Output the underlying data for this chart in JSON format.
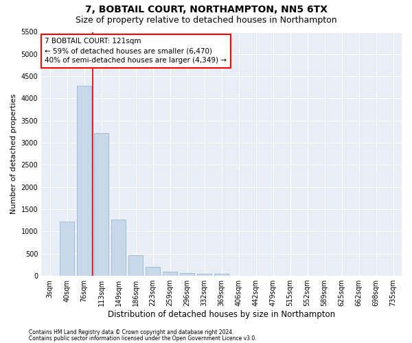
{
  "title": "7, BOBTAIL COURT, NORTHAMPTON, NN5 6TX",
  "subtitle": "Size of property relative to detached houses in Northampton",
  "xlabel": "Distribution of detached houses by size in Northampton",
  "ylabel": "Number of detached properties",
  "footnote1": "Contains HM Land Registry data © Crown copyright and database right 2024.",
  "footnote2": "Contains public sector information licensed under the Open Government Licence v3.0.",
  "annotation_line1": "7 BOBTAIL COURT: 121sqm",
  "annotation_line2": "← 59% of detached houses are smaller (6,470)",
  "annotation_line3": "40% of semi-detached houses are larger (4,349) →",
  "bar_color": "#c8d8ea",
  "bar_edge_color": "#9ab8d0",
  "red_line_color": "#cc0000",
  "background_color": "#e8eef5",
  "ylim": [
    0,
    5500
  ],
  "categories": [
    "3sqm",
    "40sqm",
    "76sqm",
    "113sqm",
    "149sqm",
    "186sqm",
    "223sqm",
    "259sqm",
    "296sqm",
    "332sqm",
    "369sqm",
    "406sqm",
    "442sqm",
    "479sqm",
    "515sqm",
    "552sqm",
    "589sqm",
    "625sqm",
    "662sqm",
    "698sqm",
    "735sqm"
  ],
  "values": [
    0,
    1220,
    4280,
    3220,
    1270,
    460,
    195,
    95,
    60,
    50,
    55,
    0,
    0,
    0,
    0,
    0,
    0,
    0,
    0,
    0,
    0
  ],
  "red_line_index": 2.5,
  "title_fontsize": 10,
  "subtitle_fontsize": 9,
  "xlabel_fontsize": 8.5,
  "ylabel_fontsize": 8,
  "tick_fontsize": 7,
  "annot_fontsize": 7.5
}
